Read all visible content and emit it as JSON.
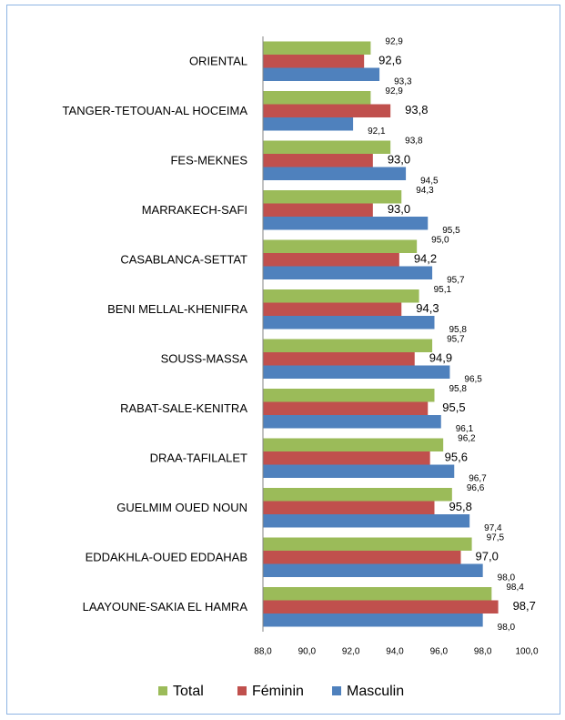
{
  "chart_data": {
    "type": "bar",
    "orientation": "horizontal",
    "categories": [
      "ORIENTAL",
      "TANGER-TETOUAN-AL HOCEIMA",
      "FES-MEKNES",
      "MARRAKECH-SAFI",
      "CASABLANCA-SETTAT",
      "BENI MELLAL-KHENIFRA",
      "SOUSS-MASSA",
      "RABAT-SALE-KENITRA",
      "DRAA-TAFILALET",
      "GUELMIM OUED NOUN",
      "EDDAKHLA-OUED EDDAHAB",
      "LAAYOUNE-SAKIA EL HAMRA"
    ],
    "series": [
      {
        "name": "Total",
        "color": "#9bbb59",
        "values": [
          92.9,
          92.9,
          93.8,
          94.3,
          95.0,
          95.1,
          95.7,
          95.8,
          96.2,
          96.6,
          97.5,
          98.4
        ],
        "value_labels": [
          "92,9",
          "92,9",
          "93,8",
          "94,3",
          "95,0",
          "95,1",
          "95,7",
          "95,8",
          "96,2",
          "96,6",
          "97,5",
          "98,4"
        ]
      },
      {
        "name": "Féminin",
        "color": "#c0504d",
        "values": [
          92.6,
          93.8,
          93.0,
          93.0,
          94.2,
          94.3,
          94.9,
          95.5,
          95.6,
          95.8,
          97.0,
          98.7
        ],
        "value_labels": [
          "92,6",
          "93,8",
          "93,0",
          "93,0",
          "94,2",
          "94,3",
          "94,9",
          "95,5",
          "95,6",
          "95,8",
          "97,0",
          "98,7"
        ]
      },
      {
        "name": "Masculin",
        "color": "#4f81bd",
        "values": [
          93.3,
          92.1,
          94.5,
          95.5,
          95.7,
          95.8,
          96.5,
          96.1,
          96.7,
          97.4,
          98.0,
          98.0
        ],
        "value_labels": [
          "93,3",
          "92,1",
          "94,5",
          "95,5",
          "95,7",
          "95,8",
          "96,5",
          "96,1",
          "96,7",
          "97,4",
          "98,0",
          "98,0"
        ]
      }
    ],
    "xlim": [
      88,
      100
    ],
    "xticks": [
      {
        "value": 88,
        "label": "88,0"
      },
      {
        "value": 90,
        "label": "90,0"
      },
      {
        "value": 92,
        "label": "92,0"
      },
      {
        "value": 94,
        "label": "94,0"
      },
      {
        "value": 96,
        "label": "96,0"
      },
      {
        "value": 98,
        "label": "98,0"
      },
      {
        "value": 100,
        "label": "100,0"
      }
    ],
    "grid": false,
    "legend": "bottom"
  }
}
